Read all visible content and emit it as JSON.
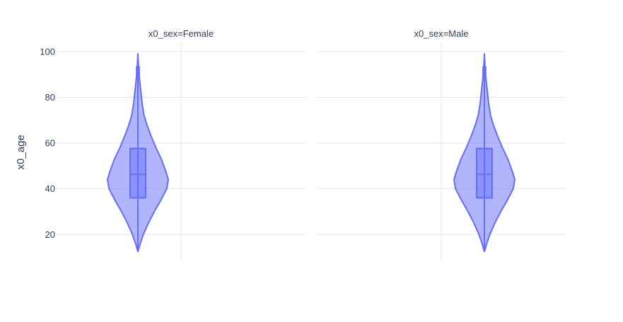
{
  "chart_data": {
    "type": "violin",
    "ylabel": "x0_age",
    "ylim": [
      8,
      104
    ],
    "y_ticks": [
      20,
      40,
      60,
      80,
      100
    ],
    "grid": true,
    "legend": "none",
    "colors": {
      "violin": "#636efa",
      "grid": "#e5e5e5",
      "text": "#2a3f5f"
    },
    "facets": [
      {
        "title": "x0_sex=Female",
        "violin_side": "left",
        "box": {
          "q1": 36,
          "median": 46.3,
          "q3": 57.6,
          "whisker_low": 13,
          "whisker_high": 89
        },
        "outliers": [
          90,
          91,
          92,
          93
        ],
        "range": [
          12.5,
          99
        ],
        "density": [
          [
            12.5,
            0
          ],
          [
            16,
            0.6
          ],
          [
            20,
            1.4
          ],
          [
            25,
            2.7
          ],
          [
            30,
            4.2
          ],
          [
            35,
            5.9
          ],
          [
            40,
            7.4
          ],
          [
            44,
            7.8
          ],
          [
            48,
            7.1
          ],
          [
            53,
            6.0
          ],
          [
            58,
            4.6
          ],
          [
            63,
            3.4
          ],
          [
            68,
            2.3
          ],
          [
            72,
            1.6
          ],
          [
            77,
            1.1
          ],
          [
            82,
            0.8
          ],
          [
            86,
            0.55
          ],
          [
            90,
            0.3
          ],
          [
            94,
            0.15
          ],
          [
            99,
            0
          ]
        ]
      },
      {
        "title": "x0_sex=Male",
        "violin_side": "right",
        "box": {
          "q1": 36,
          "median": 46.3,
          "q3": 57.6,
          "whisker_low": 13,
          "whisker_high": 89
        },
        "outliers": [
          90,
          91,
          92,
          93
        ],
        "range": [
          12.5,
          99
        ],
        "density": [
          [
            12.5,
            0
          ],
          [
            16,
            0.6
          ],
          [
            20,
            1.4
          ],
          [
            25,
            2.7
          ],
          [
            30,
            4.2
          ],
          [
            35,
            5.9
          ],
          [
            40,
            7.4
          ],
          [
            44,
            7.8
          ],
          [
            48,
            7.1
          ],
          [
            53,
            6.0
          ],
          [
            58,
            4.6
          ],
          [
            63,
            3.4
          ],
          [
            68,
            2.3
          ],
          [
            72,
            1.6
          ],
          [
            77,
            1.1
          ],
          [
            82,
            0.8
          ],
          [
            86,
            0.55
          ],
          [
            90,
            0.3
          ],
          [
            94,
            0.15
          ],
          [
            99,
            0
          ]
        ]
      }
    ]
  }
}
